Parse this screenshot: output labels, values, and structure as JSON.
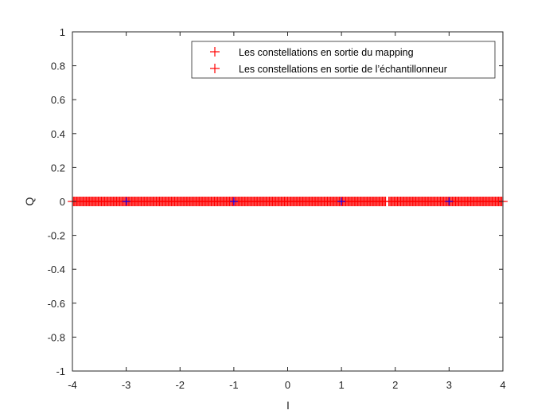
{
  "colors": {
    "mapping": "#ff0000",
    "sampler": "#ff0000",
    "reference": "#0000ff",
    "axis": "#262626"
  },
  "chart_data": {
    "type": "scatter",
    "title": "",
    "xlabel": "I",
    "ylabel": "Q",
    "xlim": [
      -4,
      4
    ],
    "ylim": [
      -1,
      1
    ],
    "xticks": [
      -4,
      -3,
      -2,
      -1,
      0,
      1,
      2,
      3,
      4
    ],
    "yticks": [
      -1,
      -0.8,
      -0.6,
      -0.4,
      -0.2,
      0,
      0.2,
      0.4,
      0.6,
      0.8,
      1
    ],
    "grid": false,
    "legend_position": "top-right",
    "series": [
      {
        "name": "Les constellations en sortie du mapping",
        "marker": "plus",
        "color": "#ff0000",
        "x": [
          -3,
          -1,
          1,
          3
        ],
        "y": [
          0,
          0,
          0,
          0
        ]
      },
      {
        "name": "Les constellations en sortie de l’échantillonneur",
        "marker": "plus",
        "color": "#ff0000",
        "x_range": [
          -4,
          4
        ],
        "y": 0,
        "gaps_near_x": [
          1.85
        ]
      },
      {
        "marker": "plus",
        "color": "#0000ff",
        "x": [
          -3,
          -1,
          1,
          3
        ],
        "y": [
          0,
          0,
          0,
          0
        ]
      }
    ]
  }
}
